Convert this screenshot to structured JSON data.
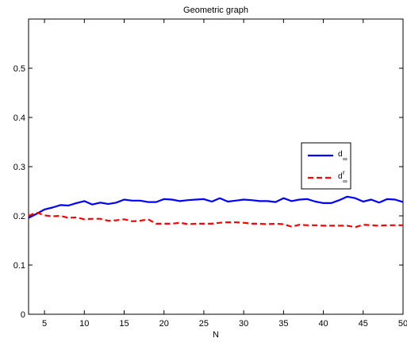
{
  "chart_data": {
    "type": "line",
    "title": "Geometric graph",
    "xlabel": "N",
    "ylabel": "",
    "xlim": [
      3,
      50
    ],
    "ylim": [
      0,
      0.6
    ],
    "xticks": [
      "5",
      "10",
      "15",
      "20",
      "25",
      "30",
      "35",
      "40",
      "45",
      "50"
    ],
    "yticks": [
      "0",
      "0.1",
      "0.2",
      "0.3",
      "0.4",
      "0.5"
    ],
    "grid": false,
    "legend_position": "right",
    "x": [
      3,
      4,
      5,
      6,
      7,
      8,
      9,
      10,
      11,
      12,
      13,
      14,
      15,
      16,
      17,
      18,
      19,
      20,
      21,
      22,
      23,
      24,
      25,
      26,
      27,
      28,
      29,
      30,
      31,
      32,
      33,
      34,
      35,
      36,
      37,
      38,
      39,
      40,
      41,
      42,
      43,
      44,
      45,
      46,
      47,
      48,
      49,
      50
    ],
    "series": [
      {
        "name": "d",
        "name_sub": "∞",
        "name_sup": "",
        "color": "#0000ff",
        "dash": "solid",
        "values": [
          0.196,
          0.204,
          0.213,
          0.217,
          0.222,
          0.221,
          0.226,
          0.23,
          0.223,
          0.227,
          0.224,
          0.227,
          0.233,
          0.231,
          0.231,
          0.228,
          0.228,
          0.234,
          0.233,
          0.23,
          0.232,
          0.233,
          0.234,
          0.229,
          0.236,
          0.229,
          0.231,
          0.233,
          0.232,
          0.23,
          0.23,
          0.228,
          0.236,
          0.23,
          0.233,
          0.234,
          0.229,
          0.226,
          0.226,
          0.232,
          0.239,
          0.236,
          0.229,
          0.233,
          0.227,
          0.234,
          0.233,
          0.228
        ]
      },
      {
        "name": "d",
        "name_sub": "∞",
        "name_sup": "r",
        "color": "#ff0000",
        "dash": "dashed",
        "values": [
          0.2,
          0.207,
          0.201,
          0.199,
          0.2,
          0.196,
          0.197,
          0.193,
          0.194,
          0.194,
          0.19,
          0.191,
          0.193,
          0.189,
          0.19,
          0.193,
          0.184,
          0.184,
          0.184,
          0.186,
          0.183,
          0.184,
          0.184,
          0.184,
          0.186,
          0.187,
          0.187,
          0.186,
          0.184,
          0.184,
          0.183,
          0.184,
          0.183,
          0.178,
          0.182,
          0.181,
          0.181,
          0.18,
          0.18,
          0.18,
          0.18,
          0.177,
          0.182,
          0.181,
          0.18,
          0.181,
          0.181,
          0.181
        ]
      }
    ]
  }
}
